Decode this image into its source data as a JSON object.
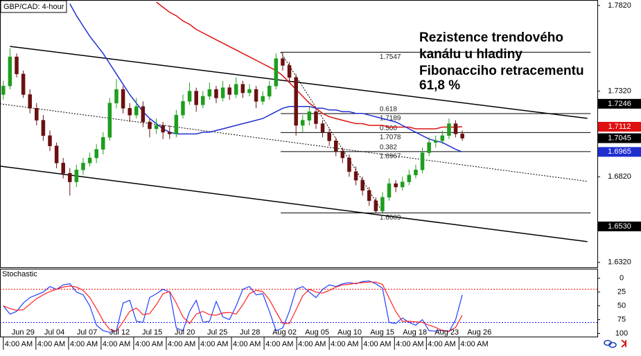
{
  "symbol_label": "GBP/CAD: 4-hour",
  "annotation": [
    "Rezistence trendového",
    "kanálu u hladiny",
    "Fibonacciho retracementu",
    "61,8 %"
  ],
  "chart_data": [
    {
      "type": "candlestick",
      "xlim": [
        -0.5,
        89.3
      ],
      "ylim": [
        1.7852,
        1.6291
      ],
      "yticks": [
        {
          "value": 1.782,
          "label": "1.7820"
        },
        {
          "value": 1.732,
          "label": "1.7320"
        },
        {
          "value": 1.682,
          "label": "1.6820"
        },
        {
          "value": 1.632,
          "label": "1.6320"
        }
      ],
      "up_color": "#1e9e1e",
      "down_color": "#6b1010",
      "candles": [
        [
          1.73,
          1.738,
          1.727,
          1.735
        ],
        [
          1.735,
          1.757,
          1.733,
          1.752
        ],
        [
          1.752,
          1.754,
          1.74,
          1.742
        ],
        [
          1.742,
          1.744,
          1.728,
          1.73
        ],
        [
          1.73,
          1.733,
          1.719,
          1.722
        ],
        [
          1.722,
          1.725,
          1.712,
          1.715
        ],
        [
          1.715,
          1.718,
          1.703,
          1.706
        ],
        [
          1.706,
          1.709,
          1.697,
          1.7
        ],
        [
          1.7,
          1.702,
          1.687,
          1.69
        ],
        [
          1.69,
          1.693,
          1.681,
          1.684
        ],
        [
          1.684,
          1.687,
          1.671,
          1.679
        ],
        [
          1.679,
          1.689,
          1.676,
          1.686
        ],
        [
          1.686,
          1.693,
          1.683,
          1.69
        ],
        [
          1.69,
          1.696,
          1.688,
          1.693
        ],
        [
          1.693,
          1.701,
          1.69,
          1.698
        ],
        [
          1.698,
          1.708,
          1.695,
          1.705
        ],
        [
          1.705,
          1.728,
          1.703,
          1.725
        ],
        [
          1.725,
          1.739,
          1.722,
          1.733
        ],
        [
          1.733,
          1.735,
          1.719,
          1.722
        ],
        [
          1.722,
          1.725,
          1.714,
          1.718
        ],
        [
          1.718,
          1.728,
          1.716,
          1.723
        ],
        [
          1.723,
          1.726,
          1.711,
          1.714
        ],
        [
          1.714,
          1.716,
          1.705,
          1.71
        ],
        [
          1.71,
          1.716,
          1.707,
          1.712
        ],
        [
          1.712,
          1.714,
          1.704,
          1.708
        ],
        [
          1.708,
          1.712,
          1.704,
          1.707
        ],
        [
          1.707,
          1.721,
          1.705,
          1.718
        ],
        [
          1.718,
          1.73,
          1.716,
          1.726
        ],
        [
          1.726,
          1.737,
          1.724,
          1.732
        ],
        [
          1.732,
          1.734,
          1.72,
          1.724
        ],
        [
          1.724,
          1.732,
          1.722,
          1.729
        ],
        [
          1.729,
          1.737,
          1.727,
          1.733
        ],
        [
          1.733,
          1.735,
          1.725,
          1.728
        ],
        [
          1.728,
          1.738,
          1.726,
          1.734
        ],
        [
          1.734,
          1.736,
          1.727,
          1.73
        ],
        [
          1.73,
          1.74,
          1.728,
          1.736
        ],
        [
          1.736,
          1.738,
          1.728,
          1.731
        ],
        [
          1.731,
          1.736,
          1.729,
          1.733
        ],
        [
          1.733,
          1.735,
          1.722,
          1.726
        ],
        [
          1.726,
          1.732,
          1.724,
          1.729
        ],
        [
          1.729,
          1.738,
          1.727,
          1.735
        ],
        [
          1.735,
          1.754,
          1.733,
          1.751
        ],
        [
          1.751,
          1.7547,
          1.744,
          1.747
        ],
        [
          1.747,
          1.749,
          1.737,
          1.74
        ],
        [
          1.74,
          1.742,
          1.706,
          1.712
        ],
        [
          1.712,
          1.718,
          1.708,
          1.715
        ],
        [
          1.715,
          1.723,
          1.712,
          1.72
        ],
        [
          1.72,
          1.722,
          1.71,
          1.713
        ],
        [
          1.713,
          1.715,
          1.705,
          1.708
        ],
        [
          1.708,
          1.71,
          1.7,
          1.703
        ],
        [
          1.703,
          1.705,
          1.694,
          1.697
        ],
        [
          1.697,
          1.699,
          1.69,
          1.693
        ],
        [
          1.693,
          1.695,
          1.682,
          1.685
        ],
        [
          1.685,
          1.688,
          1.677,
          1.68
        ],
        [
          1.68,
          1.682,
          1.671,
          1.674
        ],
        [
          1.674,
          1.676,
          1.665,
          1.668
        ],
        [
          1.668,
          1.67,
          1.6609,
          1.662
        ],
        [
          1.662,
          1.673,
          1.6615,
          1.67
        ],
        [
          1.67,
          1.681,
          1.668,
          1.678
        ],
        [
          1.678,
          1.68,
          1.673,
          1.676
        ],
        [
          1.676,
          1.682,
          1.674,
          1.679
        ],
        [
          1.679,
          1.686,
          1.677,
          1.683
        ],
        [
          1.683,
          1.689,
          1.681,
          1.686
        ],
        [
          1.686,
          1.699,
          1.684,
          1.696
        ],
        [
          1.696,
          1.705,
          1.694,
          1.702
        ],
        [
          1.702,
          1.706,
          1.699,
          1.703
        ],
        [
          1.703,
          1.709,
          1.701,
          1.706
        ],
        [
          1.706,
          1.716,
          1.704,
          1.713
        ],
        [
          1.713,
          1.715,
          1.705,
          1.707
        ],
        [
          1.707,
          1.709,
          1.703,
          1.7045
        ]
      ],
      "series": [
        {
          "color": "#e01010",
          "values": [
            null,
            null,
            null,
            null,
            null,
            null,
            null,
            null,
            null,
            null,
            null,
            null,
            null,
            null,
            null,
            null,
            null,
            null,
            null,
            null,
            null,
            null,
            null,
            1.784,
            1.781,
            1.778,
            1.776,
            1.773,
            1.771,
            1.768,
            1.766,
            1.764,
            1.762,
            1.76,
            1.758,
            1.756,
            1.754,
            1.752,
            1.75,
            1.748,
            1.746,
            1.744,
            1.741,
            1.737,
            1.733,
            1.729,
            1.725,
            1.722,
            1.719,
            1.717,
            1.716,
            1.715,
            1.714,
            1.713,
            1.713,
            1.712,
            1.712,
            1.712,
            1.711,
            1.711,
            1.711,
            1.711,
            1.71,
            1.71,
            1.71,
            1.71,
            1.711,
            1.711,
            1.711,
            1.7112
          ]
        },
        {
          "color": "#1f2fd0",
          "values": [
            null,
            null,
            null,
            null,
            null,
            null,
            null,
            null,
            null,
            null,
            1.783,
            1.776,
            1.77,
            1.764,
            1.759,
            1.754,
            1.748,
            1.742,
            1.736,
            1.73,
            1.725,
            1.72,
            1.716,
            1.713,
            1.71,
            1.708,
            1.707,
            1.707,
            1.707,
            1.707,
            1.708,
            1.708,
            1.709,
            1.71,
            1.711,
            1.712,
            1.713,
            1.714,
            1.715,
            1.716,
            1.718,
            1.72,
            1.722,
            1.723,
            1.723,
            1.723,
            1.723,
            1.722,
            1.722,
            1.721,
            1.721,
            1.72,
            1.72,
            1.719,
            1.719,
            1.718,
            1.717,
            1.716,
            1.715,
            1.714,
            1.712,
            1.71,
            1.708,
            1.706,
            1.704,
            1.703,
            1.702,
            1.7,
            1.698,
            1.6965
          ]
        }
      ],
      "trendlines": [
        {
          "style": "solid",
          "color": "#000000",
          "points": [
            [
              1,
              1.7581
            ],
            [
              87.8,
              1.7161
            ]
          ]
        },
        {
          "style": "dotted",
          "color": "#000000",
          "points": [
            [
              -0.5,
              1.7246
            ],
            [
              87.8,
              1.6793
            ]
          ]
        },
        {
          "style": "solid",
          "color": "#000000",
          "points": [
            [
              -0.5,
              1.6882
            ],
            [
              87.8,
              1.6441
            ]
          ]
        }
      ],
      "fibonacci": {
        "start": 41.7,
        "end": 88.3,
        "trend_end": 57.1,
        "levels": [
          {
            "value": 1.7547
          },
          {
            "ratio": "0.618",
            "value": 1.7189
          },
          {
            "ratio": "0.500",
            "value": 1.7078
          },
          {
            "ratio": "0.382",
            "value": 1.6967
          },
          {
            "value": 1.6609
          }
        ]
      },
      "price_labels": [
        {
          "value": 1.7246,
          "color": "#000000"
        },
        {
          "value": 1.7112,
          "color": "#e01010"
        },
        {
          "value": 1.7045,
          "color": "#000000"
        },
        {
          "value": 1.6965,
          "color": "#1f2fd0"
        },
        {
          "value": 1.653,
          "label": "1.6530",
          "color": "#000000"
        }
      ]
    },
    {
      "type": "stochastic",
      "title": "Stochastic",
      "ylim": [
        -16,
        107
      ],
      "yticks": [
        100,
        75,
        50,
        25,
        0
      ],
      "levels": [
        {
          "value": 80,
          "color": "#2020ff"
        },
        {
          "value": 20,
          "color": "#ff0000"
        }
      ],
      "series": [
        {
          "color": "#1f3fff",
          "values": [
            50,
            65,
            60,
            45,
            35,
            30,
            25,
            15,
            20,
            12,
            10,
            25,
            30,
            50,
            85,
            95,
            98,
            95,
            45,
            40,
            78,
            80,
            35,
            28,
            20,
            25,
            90,
            95,
            60,
            40,
            80,
            78,
            42,
            70,
            75,
            50,
            20,
            15,
            30,
            28,
            60,
            95,
            90,
            60,
            20,
            15,
            25,
            35,
            20,
            12,
            15,
            10,
            8,
            10,
            6,
            5,
            10,
            18,
            80,
            82,
            72,
            80,
            85,
            75,
            95,
            96,
            94,
            97,
            75,
            30
          ]
        },
        {
          "color": "#ff2020",
          "values": [
            50,
            55,
            58,
            57,
            47,
            37,
            30,
            24,
            20,
            16,
            14,
            16,
            22,
            35,
            55,
            77,
            93,
            96,
            79,
            60,
            54,
            66,
            64,
            48,
            28,
            24,
            45,
            70,
            82,
            65,
            60,
            66,
            67,
            63,
            62,
            65,
            48,
            28,
            22,
            24,
            39,
            61,
            82,
            82,
            57,
            32,
            20,
            25,
            27,
            22,
            16,
            12,
            11,
            9,
            8,
            7,
            7,
            11,
            36,
            60,
            78,
            78,
            79,
            80,
            85,
            89,
            95,
            96,
            89,
            67
          ]
        }
      ],
      "xticks": [
        {
          "value": 0,
          "label": "Jun 29",
          "time": "4:00 AM"
        },
        {
          "value": 4.9,
          "label": "Jul 04",
          "time": "4:00 AM"
        },
        {
          "value": 9.8,
          "label": "Jul 07",
          "time": "4:00 AM"
        },
        {
          "value": 14.7,
          "label": "Jul 12",
          "time": "4:00 AM"
        },
        {
          "value": 19.6,
          "label": "Jul 15",
          "time": "4:00 AM"
        },
        {
          "value": 24.5,
          "label": "Jul 20",
          "time": "4:00 AM"
        },
        {
          "value": 29.4,
          "label": "Jul 25",
          "time": "4:00 AM"
        },
        {
          "value": 34.3,
          "label": "Jul 28",
          "time": "4:00 AM"
        },
        {
          "value": 39.2,
          "label": "Aug 02",
          "time": "4:00 AM"
        },
        {
          "value": 44.1,
          "label": "Aug 05",
          "time": "4:00 AM"
        },
        {
          "value": 49,
          "label": "Aug 10",
          "time": "4:00 AM"
        },
        {
          "value": 53.9,
          "label": "Aug 15",
          "time": "4:00 AM"
        },
        {
          "value": 58.8,
          "label": "Aug 18",
          "time": "4:00 AM"
        },
        {
          "value": 63.6,
          "label": "Aug 23",
          "time": "4:00 AM"
        },
        {
          "value": 68.5,
          "label": "Aug 26",
          "time": "4:00 AM"
        }
      ]
    }
  ]
}
